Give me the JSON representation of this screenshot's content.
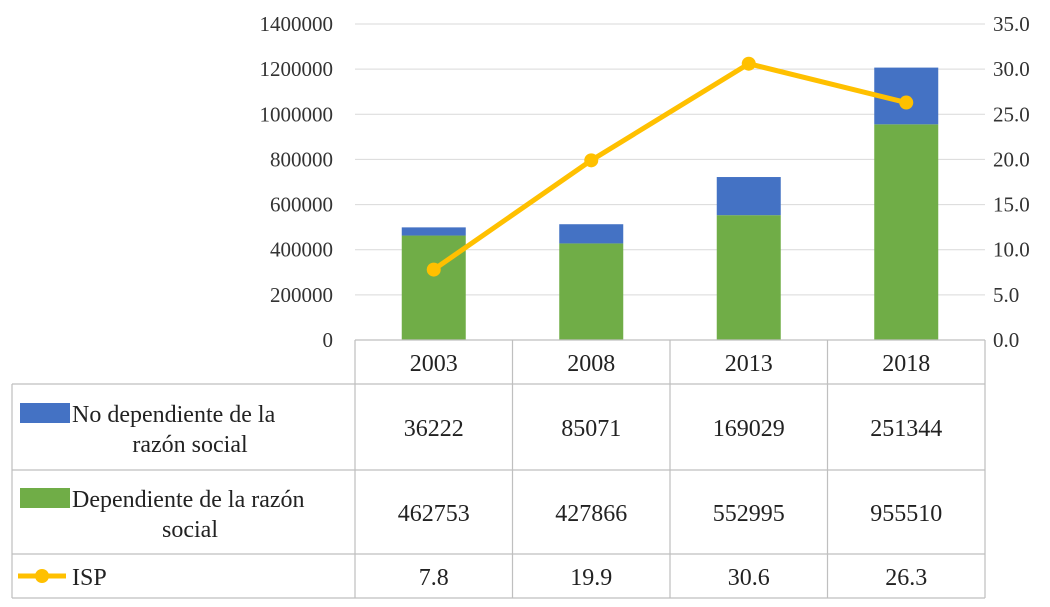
{
  "chart_data": {
    "type": "bar",
    "stacked": true,
    "categories": [
      "2003",
      "2008",
      "2013",
      "2018"
    ],
    "series": [
      {
        "name": "No dependiente de la razón social",
        "name_lines": [
          "No dependiente de la",
          "razón social"
        ],
        "values": [
          36222,
          85071,
          169029,
          251344
        ],
        "color": "#4472c4",
        "axis": "left"
      },
      {
        "name": "Dependiente de la razón social",
        "name_lines": [
          "Dependiente de la razón",
          "social"
        ],
        "values": [
          462753,
          427866,
          552995,
          955510
        ],
        "color": "#70ad47",
        "axis": "left"
      },
      {
        "name": "ISP",
        "name_lines": [
          "ISP"
        ],
        "type": "line",
        "values": [
          7.8,
          19.9,
          30.6,
          26.3
        ],
        "value_labels": [
          "7.8",
          "19.9",
          "30.6",
          "26.3"
        ],
        "color": "#ffc000",
        "axis": "right"
      }
    ],
    "left_axis": {
      "range": [
        0,
        1400000
      ],
      "ticks": [
        "0",
        "200000",
        "400000",
        "600000",
        "800000",
        "1000000",
        "1200000",
        "1400000"
      ]
    },
    "right_axis": {
      "range": [
        0,
        35
      ],
      "ticks": [
        "0.0",
        "5.0",
        "10.0",
        "15.0",
        "20.0",
        "25.0",
        "30.0",
        "35.0"
      ]
    },
    "grid": true,
    "data_table": true,
    "title": "",
    "xlabel": "",
    "ylabel": ""
  }
}
